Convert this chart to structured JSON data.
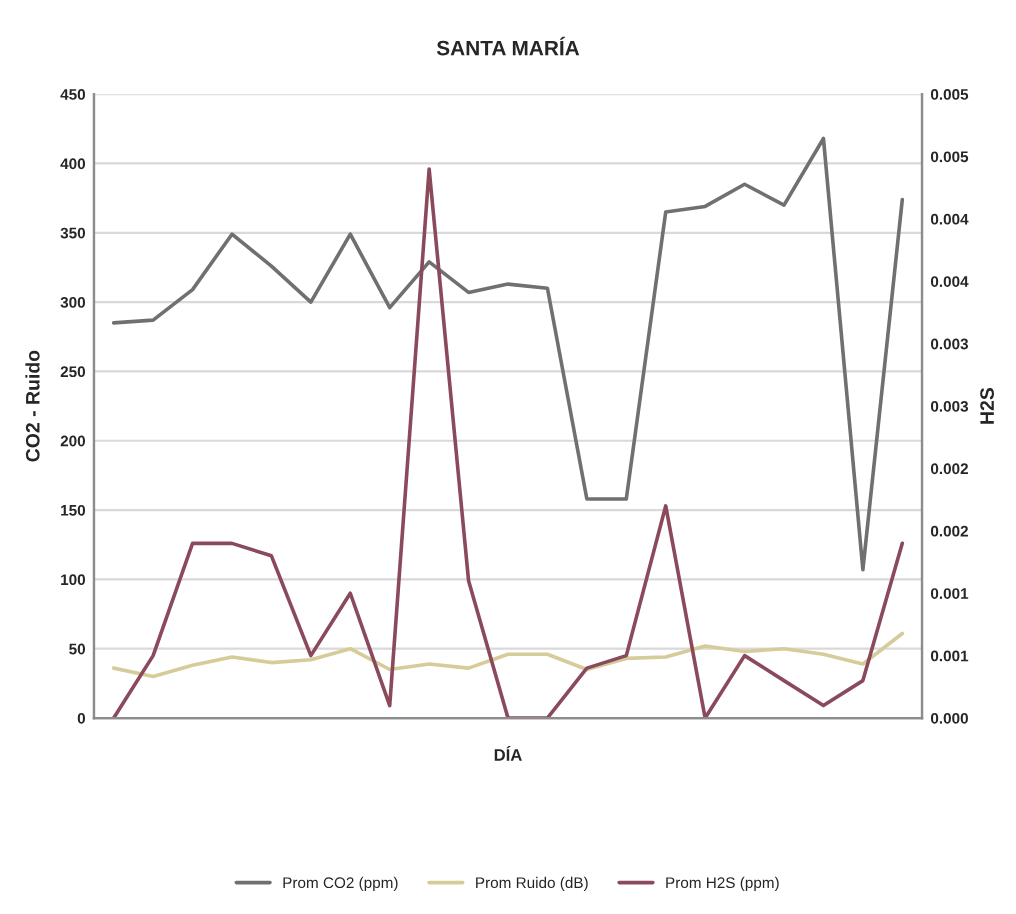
{
  "chart_data": {
    "type": "line",
    "title": "SANTA MARÍA",
    "xlabel": "DÍA",
    "ylabel": "CO2 - Ruido",
    "y2label": "H2S",
    "categories": [
      null,
      null,
      null,
      null,
      null,
      null,
      null,
      null,
      null,
      null,
      null,
      null,
      null,
      null,
      null,
      null,
      null,
      null,
      null,
      null,
      null
    ],
    "series": [
      {
        "name": "Prom CO2 (ppm)",
        "color": "#707070",
        "values": [
          285,
          287,
          309,
          349,
          326,
          300,
          349,
          296,
          329,
          307,
          313,
          310,
          158,
          158,
          365,
          369,
          385,
          370,
          418,
          107,
          374
        ]
      },
      {
        "name": "Prom Ruido (dB)",
        "color": "#d6cc9a",
        "values": [
          36,
          30,
          38,
          44,
          40,
          42,
          50,
          35,
          39,
          36,
          46,
          46,
          35,
          43,
          44,
          52,
          48,
          50,
          46,
          39,
          61
        ]
      },
      {
        "name": "Prom H2S (ppm)",
        "color": "#8a4a5c",
        "axis": "y2",
        "values": [
          0,
          0.0005,
          0.0014,
          0.0014,
          0.0013,
          0.0005,
          0.001,
          0.0001,
          0.0044,
          0.0011,
          0,
          0,
          0.0004,
          0.0005,
          0.0017,
          0,
          0.0005,
          0.0003,
          0.0001,
          0.0003,
          0.0014
        ]
      }
    ],
    "ylim": [
      0,
      450
    ],
    "yticks": [
      0,
      50,
      100,
      150,
      200,
      250,
      300,
      350,
      400,
      450
    ],
    "y2lim": [
      0,
      0.005
    ],
    "y2ticks": [
      {
        "value": 0,
        "label": "0.000"
      },
      {
        "value": 0.0005,
        "label": "0.001"
      },
      {
        "value": 0.001,
        "label": "0.001"
      },
      {
        "value": 0.0015,
        "label": "0.002"
      },
      {
        "value": 0.002,
        "label": "0.002"
      },
      {
        "value": 0.0025,
        "label": "0.003"
      },
      {
        "value": 0.003,
        "label": "0.003"
      },
      {
        "value": 0.0035,
        "label": "0.004"
      },
      {
        "value": 0.004,
        "label": "0.004"
      },
      {
        "value": 0.0045,
        "label": "0.005"
      },
      {
        "value": 0.005,
        "label": "0.005"
      }
    ],
    "grid": "y",
    "legend": "bottom",
    "marker": "none",
    "line_style": "solid"
  }
}
